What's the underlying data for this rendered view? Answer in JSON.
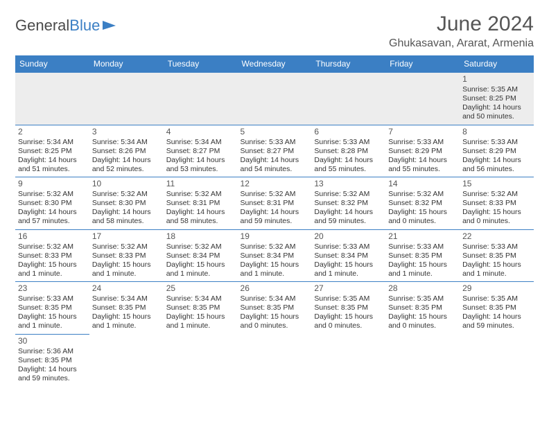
{
  "brand": {
    "word1": "General",
    "word2": "Blue"
  },
  "title": "June 2024",
  "location": "Ghukasavan, Ararat, Armenia",
  "colors": {
    "header_bg": "#3b7fc4",
    "header_text": "#ffffff",
    "row_border": "#3b7fc4",
    "firstrow_bg": "#ededed",
    "page_bg": "#ffffff",
    "text": "#333333"
  },
  "day_headers": [
    "Sunday",
    "Monday",
    "Tuesday",
    "Wednesday",
    "Thursday",
    "Friday",
    "Saturday"
  ],
  "weeks": [
    [
      null,
      null,
      null,
      null,
      null,
      null,
      {
        "n": "1",
        "sr": "Sunrise: 5:35 AM",
        "ss": "Sunset: 8:25 PM",
        "dl1": "Daylight: 14 hours",
        "dl2": "and 50 minutes."
      }
    ],
    [
      {
        "n": "2",
        "sr": "Sunrise: 5:34 AM",
        "ss": "Sunset: 8:25 PM",
        "dl1": "Daylight: 14 hours",
        "dl2": "and 51 minutes."
      },
      {
        "n": "3",
        "sr": "Sunrise: 5:34 AM",
        "ss": "Sunset: 8:26 PM",
        "dl1": "Daylight: 14 hours",
        "dl2": "and 52 minutes."
      },
      {
        "n": "4",
        "sr": "Sunrise: 5:34 AM",
        "ss": "Sunset: 8:27 PM",
        "dl1": "Daylight: 14 hours",
        "dl2": "and 53 minutes."
      },
      {
        "n": "5",
        "sr": "Sunrise: 5:33 AM",
        "ss": "Sunset: 8:27 PM",
        "dl1": "Daylight: 14 hours",
        "dl2": "and 54 minutes."
      },
      {
        "n": "6",
        "sr": "Sunrise: 5:33 AM",
        "ss": "Sunset: 8:28 PM",
        "dl1": "Daylight: 14 hours",
        "dl2": "and 55 minutes."
      },
      {
        "n": "7",
        "sr": "Sunrise: 5:33 AM",
        "ss": "Sunset: 8:29 PM",
        "dl1": "Daylight: 14 hours",
        "dl2": "and 55 minutes."
      },
      {
        "n": "8",
        "sr": "Sunrise: 5:33 AM",
        "ss": "Sunset: 8:29 PM",
        "dl1": "Daylight: 14 hours",
        "dl2": "and 56 minutes."
      }
    ],
    [
      {
        "n": "9",
        "sr": "Sunrise: 5:32 AM",
        "ss": "Sunset: 8:30 PM",
        "dl1": "Daylight: 14 hours",
        "dl2": "and 57 minutes."
      },
      {
        "n": "10",
        "sr": "Sunrise: 5:32 AM",
        "ss": "Sunset: 8:30 PM",
        "dl1": "Daylight: 14 hours",
        "dl2": "and 58 minutes."
      },
      {
        "n": "11",
        "sr": "Sunrise: 5:32 AM",
        "ss": "Sunset: 8:31 PM",
        "dl1": "Daylight: 14 hours",
        "dl2": "and 58 minutes."
      },
      {
        "n": "12",
        "sr": "Sunrise: 5:32 AM",
        "ss": "Sunset: 8:31 PM",
        "dl1": "Daylight: 14 hours",
        "dl2": "and 59 minutes."
      },
      {
        "n": "13",
        "sr": "Sunrise: 5:32 AM",
        "ss": "Sunset: 8:32 PM",
        "dl1": "Daylight: 14 hours",
        "dl2": "and 59 minutes."
      },
      {
        "n": "14",
        "sr": "Sunrise: 5:32 AM",
        "ss": "Sunset: 8:32 PM",
        "dl1": "Daylight: 15 hours",
        "dl2": "and 0 minutes."
      },
      {
        "n": "15",
        "sr": "Sunrise: 5:32 AM",
        "ss": "Sunset: 8:33 PM",
        "dl1": "Daylight: 15 hours",
        "dl2": "and 0 minutes."
      }
    ],
    [
      {
        "n": "16",
        "sr": "Sunrise: 5:32 AM",
        "ss": "Sunset: 8:33 PM",
        "dl1": "Daylight: 15 hours",
        "dl2": "and 1 minute."
      },
      {
        "n": "17",
        "sr": "Sunrise: 5:32 AM",
        "ss": "Sunset: 8:33 PM",
        "dl1": "Daylight: 15 hours",
        "dl2": "and 1 minute."
      },
      {
        "n": "18",
        "sr": "Sunrise: 5:32 AM",
        "ss": "Sunset: 8:34 PM",
        "dl1": "Daylight: 15 hours",
        "dl2": "and 1 minute."
      },
      {
        "n": "19",
        "sr": "Sunrise: 5:32 AM",
        "ss": "Sunset: 8:34 PM",
        "dl1": "Daylight: 15 hours",
        "dl2": "and 1 minute."
      },
      {
        "n": "20",
        "sr": "Sunrise: 5:33 AM",
        "ss": "Sunset: 8:34 PM",
        "dl1": "Daylight: 15 hours",
        "dl2": "and 1 minute."
      },
      {
        "n": "21",
        "sr": "Sunrise: 5:33 AM",
        "ss": "Sunset: 8:35 PM",
        "dl1": "Daylight: 15 hours",
        "dl2": "and 1 minute."
      },
      {
        "n": "22",
        "sr": "Sunrise: 5:33 AM",
        "ss": "Sunset: 8:35 PM",
        "dl1": "Daylight: 15 hours",
        "dl2": "and 1 minute."
      }
    ],
    [
      {
        "n": "23",
        "sr": "Sunrise: 5:33 AM",
        "ss": "Sunset: 8:35 PM",
        "dl1": "Daylight: 15 hours",
        "dl2": "and 1 minute."
      },
      {
        "n": "24",
        "sr": "Sunrise: 5:34 AM",
        "ss": "Sunset: 8:35 PM",
        "dl1": "Daylight: 15 hours",
        "dl2": "and 1 minute."
      },
      {
        "n": "25",
        "sr": "Sunrise: 5:34 AM",
        "ss": "Sunset: 8:35 PM",
        "dl1": "Daylight: 15 hours",
        "dl2": "and 1 minute."
      },
      {
        "n": "26",
        "sr": "Sunrise: 5:34 AM",
        "ss": "Sunset: 8:35 PM",
        "dl1": "Daylight: 15 hours",
        "dl2": "and 0 minutes."
      },
      {
        "n": "27",
        "sr": "Sunrise: 5:35 AM",
        "ss": "Sunset: 8:35 PM",
        "dl1": "Daylight: 15 hours",
        "dl2": "and 0 minutes."
      },
      {
        "n": "28",
        "sr": "Sunrise: 5:35 AM",
        "ss": "Sunset: 8:35 PM",
        "dl1": "Daylight: 15 hours",
        "dl2": "and 0 minutes."
      },
      {
        "n": "29",
        "sr": "Sunrise: 5:35 AM",
        "ss": "Sunset: 8:35 PM",
        "dl1": "Daylight: 14 hours",
        "dl2": "and 59 minutes."
      }
    ],
    [
      {
        "n": "30",
        "sr": "Sunrise: 5:36 AM",
        "ss": "Sunset: 8:35 PM",
        "dl1": "Daylight: 14 hours",
        "dl2": "and 59 minutes."
      },
      null,
      null,
      null,
      null,
      null,
      null
    ]
  ]
}
